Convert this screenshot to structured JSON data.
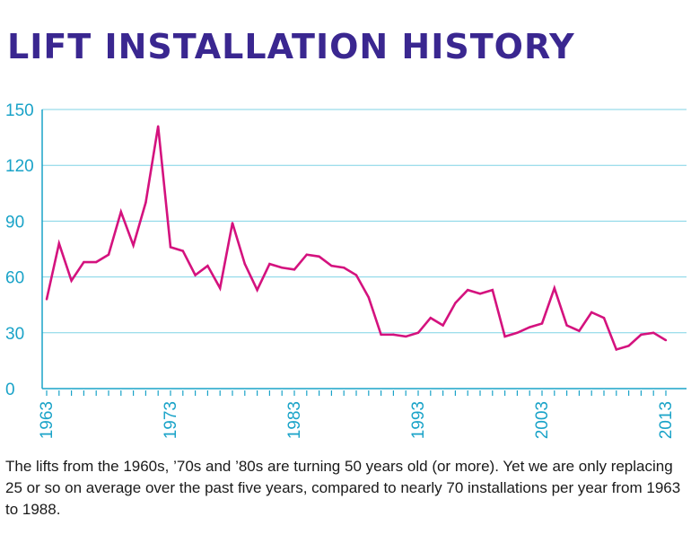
{
  "title": "LIFT INSTALLATION HISTORY",
  "caption": "The lifts from the 1960s, ’70s and ’80s are turning 50 years old (or more). Yet we are only replacing 25 or so on average over the past five years, compared to nearly 70 installations per year from 1963 to 1988.",
  "colors": {
    "title": "#3a2790",
    "line": "#d4127e",
    "axis": "#1aa3c8",
    "grid": "#7fd3e6"
  },
  "chart_data": {
    "type": "line",
    "title": "",
    "xlabel": "",
    "ylabel": "",
    "xlim": [
      1963,
      2013
    ],
    "ylim": [
      0,
      150
    ],
    "yticks": [
      0,
      30,
      60,
      90,
      120,
      150
    ],
    "xticks": [
      "1963",
      "1973",
      "1983",
      "1993",
      "2003",
      "2013"
    ],
    "grid": true,
    "series": [
      {
        "x": [
          1963,
          1964,
          1965,
          1966,
          1967,
          1968,
          1969,
          1970,
          1971,
          1972,
          1973,
          1974,
          1975,
          1976,
          1977,
          1978,
          1979,
          1980,
          1981,
          1982,
          1983,
          1984,
          1985,
          1986,
          1987,
          1988,
          1989,
          1990,
          1991,
          1992,
          1993,
          1994,
          1995,
          1996,
          1997,
          1998,
          1999,
          2000,
          2001,
          2002,
          2003,
          2004,
          2005,
          2006,
          2007,
          2008,
          2009,
          2010,
          2011,
          2012,
          2013
        ],
        "values": [
          48,
          78,
          58,
          68,
          68,
          72,
          95,
          77,
          100,
          141,
          76,
          74,
          61,
          66,
          54,
          89,
          67,
          53,
          67,
          65,
          64,
          72,
          71,
          66,
          65,
          61,
          49,
          29,
          29,
          28,
          30,
          38,
          34,
          46,
          53,
          51,
          53,
          28,
          30,
          33,
          35,
          54,
          34,
          31,
          41,
          38,
          21,
          23,
          29,
          30,
          26
        ]
      }
    ]
  }
}
